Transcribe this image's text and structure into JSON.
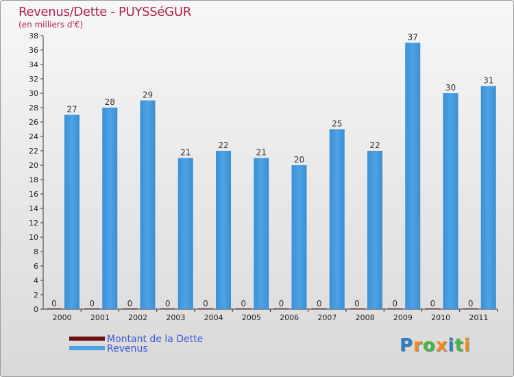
{
  "header": {
    "title": "Revenus/Dette - PUYSSéGUR",
    "subtitle": "(en milliers d'€)"
  },
  "chart_data": {
    "type": "bar",
    "categories": [
      "2000",
      "2001",
      "2002",
      "2003",
      "2004",
      "2005",
      "2006",
      "2007",
      "2008",
      "2009",
      "2010",
      "2011"
    ],
    "series": [
      {
        "name": "Montant de la Dette",
        "color": "#6b0f0f",
        "values": [
          0,
          0,
          0,
          0,
          0,
          0,
          0,
          0,
          0,
          0,
          0,
          0
        ]
      },
      {
        "name": "Revenus",
        "color": "#4ea3e6",
        "values": [
          27,
          28,
          29,
          21,
          22,
          21,
          20,
          25,
          22,
          37,
          30,
          31
        ]
      }
    ],
    "ylim": [
      0,
      38
    ],
    "yticks": [
      0,
      2,
      4,
      6,
      8,
      10,
      12,
      14,
      16,
      18,
      20,
      22,
      24,
      26,
      28,
      30,
      32,
      34,
      36,
      38
    ],
    "grid": false,
    "legend": "bottom-left"
  },
  "legend": {
    "items": [
      {
        "label": "Montant de la Dette",
        "color": "#6b0f0f"
      },
      {
        "label": "Revenus",
        "color": "#4ea3e6"
      }
    ]
  },
  "brand": {
    "letters": [
      "P",
      "r",
      "o",
      "x",
      "i",
      "t",
      "i"
    ],
    "colors": [
      "#2a7fc8",
      "#f08a1c",
      "#4bb543",
      "#f08a1c",
      "#2a7fc8",
      "#4bb543",
      "#f08a1c"
    ]
  }
}
